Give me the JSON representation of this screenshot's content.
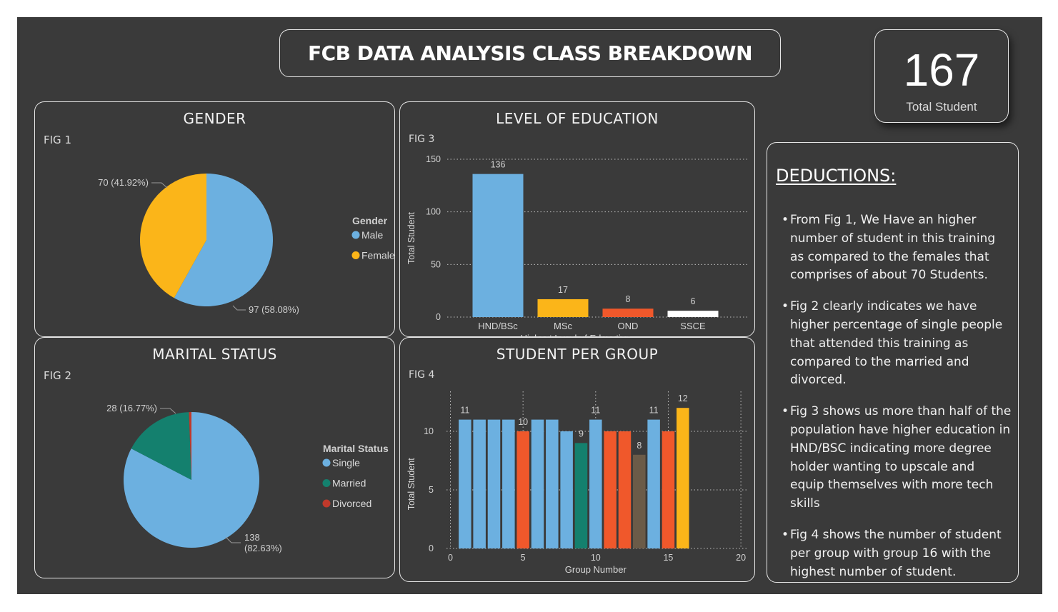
{
  "header": {
    "title": "FCB DATA ANALYSIS CLASS BREAKDOWN"
  },
  "kpi": {
    "value": "167",
    "label": "Total Student"
  },
  "deductions": {
    "title": "DEDUCTIONS:",
    "items": [
      "From Fig 1, We Have an higher number of student in this training as compared to the females that comprises of about 70 Students.",
      "Fig 2 clearly indicates we have higher percentage of single people that attended this training as compared to the married and divorced.",
      "Fig 3 shows us more than half of the population have higher education in HND/BSC indicating more degree holder wanting to upscale and equip themselves with more tech skills",
      "Fig 4 shows the number of student per group with group 16 with the highest number of student."
    ]
  },
  "panels": {
    "gender": {
      "title": "GENDER",
      "fig": "FIG 1"
    },
    "marital": {
      "title": "MARITAL STATUS",
      "fig": "FIG 2"
    },
    "education": {
      "title": "LEVEL OF EDUCATION",
      "fig": "FIG 3"
    },
    "group": {
      "title": "STUDENT PER GROUP",
      "fig": "FIG 4"
    }
  },
  "chart_data": [
    {
      "id": "gender",
      "type": "pie",
      "legend_title": "Gender",
      "legend_position": "right",
      "slices": [
        {
          "name": "Male",
          "value": 97,
          "label": "97 (58.08%)",
          "color": "#6cb0e0"
        },
        {
          "name": "Female",
          "value": 70,
          "label": "70 (41.92%)",
          "color": "#fbb519"
        }
      ]
    },
    {
      "id": "marital",
      "type": "pie",
      "legend_title": "Marital Status",
      "legend_position": "right",
      "slices": [
        {
          "name": "Single",
          "value": 138,
          "label": "138 (82.63%)",
          "color": "#6cb0e0"
        },
        {
          "name": "Married",
          "value": 28,
          "label": "28 (16.77%)",
          "color": "#14806e"
        },
        {
          "name": "Divorced",
          "value": 1,
          "label": "",
          "color": "#c0392b"
        }
      ]
    },
    {
      "id": "education",
      "type": "bar",
      "xlabel": "Highest Level of Education",
      "ylabel": "Total Student",
      "ylim": [
        0,
        150
      ],
      "yticks": [
        0,
        50,
        100,
        150
      ],
      "grid": true,
      "categories": [
        "HND/BSc",
        "MSc",
        "OND",
        "SSCE"
      ],
      "values": [
        136,
        17,
        8,
        6
      ],
      "colors": [
        "#6cb0e0",
        "#fbb519",
        "#f0582b",
        "#ffffff"
      ]
    },
    {
      "id": "group",
      "type": "bar",
      "xlabel": "Group Number",
      "ylabel": "Total Student",
      "xlim": [
        0,
        20
      ],
      "ylim": [
        0,
        13
      ],
      "xticks": [
        0,
        5,
        10,
        15,
        20
      ],
      "yticks": [
        0,
        5,
        10
      ],
      "grid": true,
      "x": [
        1,
        2,
        3,
        4,
        5,
        6,
        7,
        8,
        9,
        10,
        11,
        12,
        13,
        14,
        15,
        16
      ],
      "values": [
        11,
        11,
        11,
        11,
        10,
        11,
        11,
        10,
        9,
        11,
        10,
        10,
        8,
        11,
        10,
        12
      ],
      "show_labels": [
        1,
        5,
        9,
        10,
        13,
        14,
        16
      ],
      "colors": [
        "#6cb0e0",
        "#6cb0e0",
        "#6cb0e0",
        "#6cb0e0",
        "#f0582b",
        "#6cb0e0",
        "#6cb0e0",
        "#6cb0e0",
        "#14806e",
        "#6cb0e0",
        "#f0582b",
        "#f0582b",
        "#6b5b48",
        "#6cb0e0",
        "#f0582b",
        "#fbb519"
      ]
    }
  ]
}
